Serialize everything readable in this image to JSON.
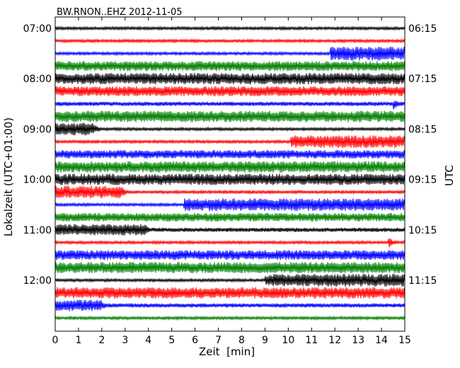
{
  "title": "BW.RNON..EHZ 2012-11-05",
  "chart_data": {
    "type": "line",
    "title": "BW.RNON..EHZ 2012-11-05",
    "xlabel": "Zeit  [min]",
    "ylabel": "Lokalzeit (UTC+01:00)",
    "y2label": "UTC",
    "xlim": [
      0,
      15
    ],
    "x_ticks": [
      "0",
      "1",
      "2",
      "3",
      "4",
      "5",
      "6",
      "7",
      "8",
      "9",
      "10",
      "11",
      "12",
      "13",
      "14",
      "15"
    ],
    "left_tick_labels": [
      "07:00",
      "08:00",
      "09:00",
      "10:00",
      "11:00",
      "12:00"
    ],
    "right_tick_labels": [
      "06:15",
      "07:15",
      "08:15",
      "09:15",
      "10:15",
      "11:15"
    ],
    "colors": [
      "#000000",
      "#ff0000",
      "#0000ff",
      "#008000"
    ],
    "traces": [
      {
        "color": "black",
        "amp": 2,
        "events": [
          {
            "t": 13,
            "a": 2
          }
        ]
      },
      {
        "color": "red",
        "amp": 2,
        "events": [
          {
            "t": 12,
            "a": 2
          }
        ]
      },
      {
        "color": "blue",
        "amp": 2,
        "events": [
          {
            "t": 11.8,
            "a": 10,
            "end": 15
          }
        ]
      },
      {
        "color": "green",
        "amp": 7,
        "events": []
      },
      {
        "color": "black",
        "amp": 8,
        "events": [
          {
            "t": 7.5,
            "a": 8
          }
        ]
      },
      {
        "color": "red",
        "amp": 7,
        "events": [
          {
            "t": 9.5,
            "a": 10
          }
        ]
      },
      {
        "color": "blue",
        "amp": 3,
        "events": [
          {
            "t": 14.5,
            "a": 8
          }
        ]
      },
      {
        "color": "green",
        "amp": 8,
        "events": []
      },
      {
        "color": "black",
        "amp": 2,
        "events": [
          {
            "t": 0,
            "a": 9,
            "end": 1.6
          },
          {
            "t": 1.6,
            "a": 10
          }
        ]
      },
      {
        "color": "red",
        "amp": 2,
        "events": [
          {
            "t": 10.1,
            "a": 9,
            "end": 15
          }
        ]
      },
      {
        "color": "blue",
        "amp": 6,
        "events": [
          {
            "t": 3.9,
            "a": 8
          }
        ]
      },
      {
        "color": "green",
        "amp": 8,
        "events": []
      },
      {
        "color": "black",
        "amp": 8,
        "events": []
      },
      {
        "color": "red",
        "amp": 2,
        "events": [
          {
            "t": 0,
            "a": 9,
            "end": 2.8
          },
          {
            "t": 2.8,
            "a": 10
          }
        ]
      },
      {
        "color": "blue",
        "amp": 2,
        "events": [
          {
            "t": 5.5,
            "a": 9,
            "end": 15
          }
        ]
      },
      {
        "color": "green",
        "amp": 6,
        "events": []
      },
      {
        "color": "black",
        "amp": 3,
        "events": [
          {
            "t": 0,
            "a": 8,
            "end": 3.8
          },
          {
            "t": 3.8,
            "a": 10
          }
        ]
      },
      {
        "color": "red",
        "amp": 2,
        "events": [
          {
            "t": 14.3,
            "a": 8
          }
        ]
      },
      {
        "color": "blue",
        "amp": 7,
        "events": []
      },
      {
        "color": "green",
        "amp": 8,
        "events": []
      },
      {
        "color": "black",
        "amp": 2,
        "events": [
          {
            "t": 9,
            "a": 9,
            "end": 15
          }
        ]
      },
      {
        "color": "red",
        "amp": 8,
        "events": []
      },
      {
        "color": "blue",
        "amp": 3,
        "events": [
          {
            "t": 0,
            "a": 8,
            "end": 1.9
          },
          {
            "t": 1.9,
            "a": 10
          },
          {
            "t": 4.9,
            "a": 4
          }
        ]
      },
      {
        "color": "green",
        "amp": 2,
        "events": []
      }
    ]
  }
}
